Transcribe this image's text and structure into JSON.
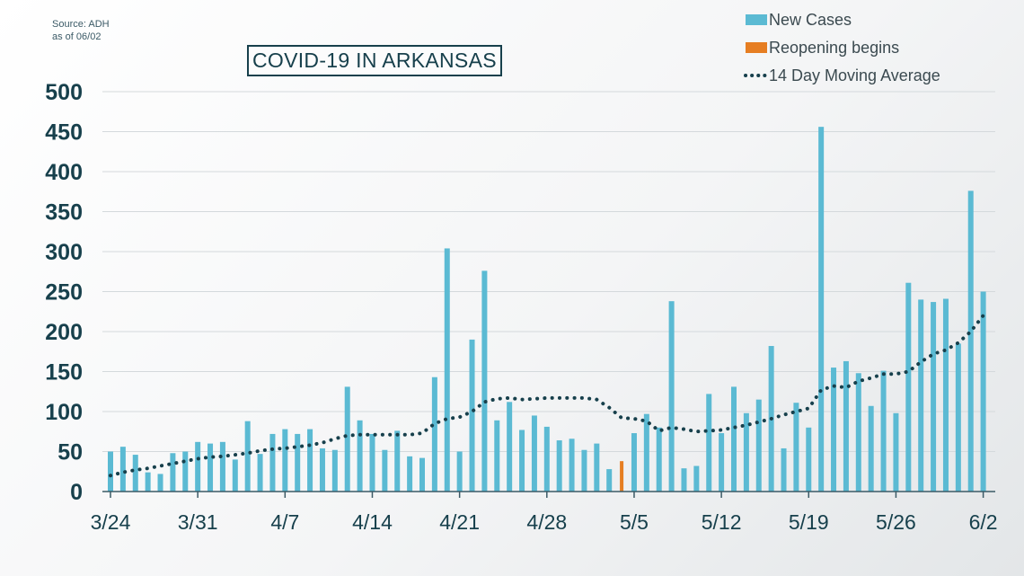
{
  "source": {
    "line1": "Source: ADH",
    "line2": "as of 06/02"
  },
  "title": "COVID-19 IN ARKANSAS",
  "colors": {
    "bar": "#5bbad3",
    "reopen": "#e67e22",
    "avg": "#17404c",
    "axis": "#3b5a66",
    "grid": "#d4d9dc"
  },
  "chart_data": {
    "type": "bar",
    "title": "COVID-19 IN ARKANSAS",
    "ylim": [
      0,
      500
    ],
    "yticks": [
      0,
      50,
      100,
      150,
      200,
      250,
      300,
      350,
      400,
      450,
      500
    ],
    "x_tick_labels": [
      "3/24",
      "3/31",
      "4/7",
      "4/14",
      "4/21",
      "4/28",
      "5/5",
      "5/12",
      "5/19",
      "5/26",
      "6/2"
    ],
    "x": [
      "3/24",
      "3/25",
      "3/26",
      "3/27",
      "3/28",
      "3/29",
      "3/30",
      "3/31",
      "4/1",
      "4/2",
      "4/3",
      "4/4",
      "4/5",
      "4/6",
      "4/7",
      "4/8",
      "4/9",
      "4/10",
      "4/11",
      "4/12",
      "4/13",
      "4/14",
      "4/15",
      "4/16",
      "4/17",
      "4/18",
      "4/19",
      "4/20",
      "4/21",
      "4/22",
      "4/23",
      "4/24",
      "4/25",
      "4/26",
      "4/27",
      "4/28",
      "4/29",
      "4/30",
      "5/1",
      "5/2",
      "5/3",
      "5/4",
      "5/5",
      "5/6",
      "5/7",
      "5/8",
      "5/9",
      "5/10",
      "5/11",
      "5/12",
      "5/13",
      "5/14",
      "5/15",
      "5/16",
      "5/17",
      "5/18",
      "5/19",
      "5/20",
      "5/21",
      "5/22",
      "5/23",
      "5/24",
      "5/25",
      "5/26",
      "5/27",
      "5/28",
      "5/29",
      "5/30",
      "5/31",
      "6/1",
      "6/2"
    ],
    "grid": true,
    "legend_position": "top-right",
    "legend": [
      "New Cases",
      "Reopening begins",
      "14 Day Moving Average"
    ],
    "series": [
      {
        "name": "New Cases",
        "type": "bar",
        "values": [
          50,
          56,
          46,
          24,
          22,
          48,
          50,
          62,
          60,
          62,
          40,
          88,
          47,
          72,
          78,
          72,
          78,
          54,
          52,
          131,
          89,
          72,
          52,
          76,
          44,
          42,
          143,
          304,
          50,
          190,
          276,
          89,
          112,
          77,
          95,
          81,
          64,
          66,
          52,
          60,
          28,
          0,
          73,
          97,
          80,
          238,
          29,
          32,
          122,
          73,
          131,
          98,
          115,
          182,
          54,
          111,
          80,
          456,
          155,
          163,
          148,
          107,
          151,
          98,
          261,
          240,
          237,
          241,
          185,
          376,
          250
        ]
      },
      {
        "name": "Reopening begins",
        "type": "bar",
        "x": "5/4",
        "value": 38
      },
      {
        "name": "14 Day Moving Average",
        "type": "line",
        "values": [
          20,
          24,
          27,
          29,
          32,
          35,
          38,
          41,
          43,
          44,
          46,
          48,
          51,
          53,
          54,
          56,
          58,
          61,
          66,
          70,
          71,
          71,
          71,
          71,
          71,
          73,
          85,
          91,
          93,
          100,
          112,
          116,
          117,
          115,
          116,
          117,
          117,
          117,
          117,
          115,
          105,
          92,
          91,
          88,
          76,
          80,
          78,
          75,
          76,
          77,
          80,
          83,
          87,
          91,
          96,
          100,
          104,
          127,
          132,
          130,
          138,
          142,
          147,
          147,
          150,
          162,
          172,
          177,
          186,
          200,
          220
        ]
      }
    ]
  }
}
